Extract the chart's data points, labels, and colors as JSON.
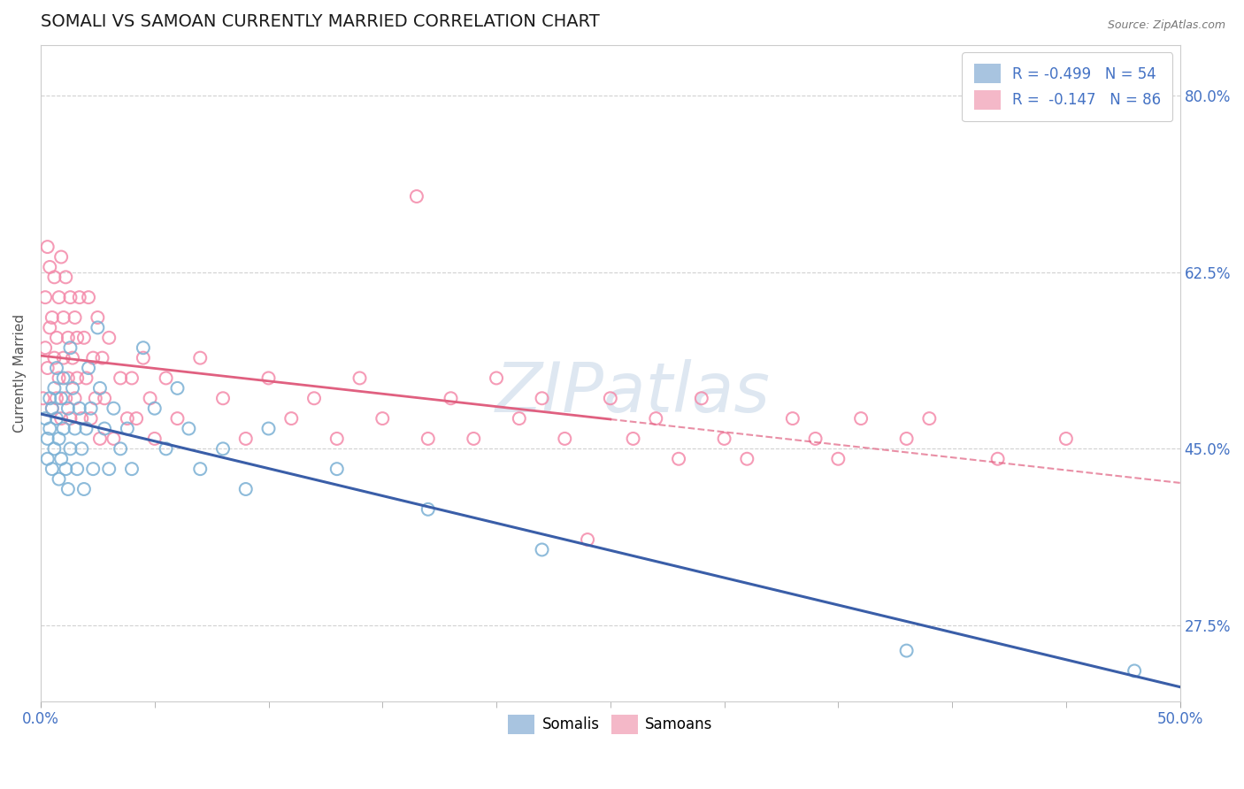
{
  "title": "SOMALI VS SAMOAN CURRENTLY MARRIED CORRELATION CHART",
  "source": "Source: ZipAtlas.com",
  "xlabel": "",
  "ylabel": "Currently Married",
  "xlim": [
    0.0,
    0.5
  ],
  "ylim": [
    0.2,
    0.85
  ],
  "yticks": [
    0.275,
    0.45,
    0.625,
    0.8
  ],
  "ytick_labels": [
    "27.5%",
    "45.0%",
    "62.5%",
    "80.0%"
  ],
  "xtick_labels": [
    "0.0%",
    "50.0%"
  ],
  "somali_color": "#7ab0d4",
  "samoan_color": "#f48aaa",
  "somali_line_color": "#3a5ea8",
  "samoan_line_color": "#e06080",
  "watermark_color": "#c8d8e8",
  "background_color": "#ffffff",
  "grid_color": "#cccccc",
  "title_color": "#1a1a2e",
  "somali_scatter": [
    [
      0.002,
      0.48
    ],
    [
      0.003,
      0.46
    ],
    [
      0.003,
      0.44
    ],
    [
      0.004,
      0.5
    ],
    [
      0.004,
      0.47
    ],
    [
      0.005,
      0.49
    ],
    [
      0.005,
      0.43
    ],
    [
      0.006,
      0.51
    ],
    [
      0.006,
      0.45
    ],
    [
      0.007,
      0.53
    ],
    [
      0.007,
      0.48
    ],
    [
      0.008,
      0.46
    ],
    [
      0.008,
      0.42
    ],
    [
      0.009,
      0.5
    ],
    [
      0.009,
      0.44
    ],
    [
      0.01,
      0.52
    ],
    [
      0.01,
      0.47
    ],
    [
      0.011,
      0.43
    ],
    [
      0.012,
      0.49
    ],
    [
      0.012,
      0.41
    ],
    [
      0.013,
      0.55
    ],
    [
      0.013,
      0.45
    ],
    [
      0.014,
      0.51
    ],
    [
      0.015,
      0.47
    ],
    [
      0.016,
      0.43
    ],
    [
      0.017,
      0.49
    ],
    [
      0.018,
      0.45
    ],
    [
      0.019,
      0.41
    ],
    [
      0.02,
      0.47
    ],
    [
      0.021,
      0.53
    ],
    [
      0.022,
      0.49
    ],
    [
      0.023,
      0.43
    ],
    [
      0.025,
      0.57
    ],
    [
      0.026,
      0.51
    ],
    [
      0.028,
      0.47
    ],
    [
      0.03,
      0.43
    ],
    [
      0.032,
      0.49
    ],
    [
      0.035,
      0.45
    ],
    [
      0.038,
      0.47
    ],
    [
      0.04,
      0.43
    ],
    [
      0.045,
      0.55
    ],
    [
      0.05,
      0.49
    ],
    [
      0.055,
      0.45
    ],
    [
      0.06,
      0.51
    ],
    [
      0.065,
      0.47
    ],
    [
      0.07,
      0.43
    ],
    [
      0.08,
      0.45
    ],
    [
      0.09,
      0.41
    ],
    [
      0.1,
      0.47
    ],
    [
      0.13,
      0.43
    ],
    [
      0.17,
      0.39
    ],
    [
      0.22,
      0.35
    ],
    [
      0.38,
      0.25
    ],
    [
      0.48,
      0.23
    ]
  ],
  "samoan_scatter": [
    [
      0.001,
      0.5
    ],
    [
      0.002,
      0.6
    ],
    [
      0.002,
      0.55
    ],
    [
      0.003,
      0.65
    ],
    [
      0.003,
      0.53
    ],
    [
      0.004,
      0.57
    ],
    [
      0.004,
      0.63
    ],
    [
      0.005,
      0.49
    ],
    [
      0.005,
      0.58
    ],
    [
      0.006,
      0.54
    ],
    [
      0.006,
      0.62
    ],
    [
      0.007,
      0.5
    ],
    [
      0.007,
      0.56
    ],
    [
      0.008,
      0.6
    ],
    [
      0.008,
      0.52
    ],
    [
      0.009,
      0.64
    ],
    [
      0.009,
      0.48
    ],
    [
      0.01,
      0.58
    ],
    [
      0.01,
      0.54
    ],
    [
      0.011,
      0.62
    ],
    [
      0.011,
      0.5
    ],
    [
      0.012,
      0.56
    ],
    [
      0.012,
      0.52
    ],
    [
      0.013,
      0.6
    ],
    [
      0.013,
      0.48
    ],
    [
      0.014,
      0.54
    ],
    [
      0.015,
      0.58
    ],
    [
      0.015,
      0.5
    ],
    [
      0.016,
      0.56
    ],
    [
      0.016,
      0.52
    ],
    [
      0.017,
      0.6
    ],
    [
      0.018,
      0.48
    ],
    [
      0.019,
      0.56
    ],
    [
      0.02,
      0.52
    ],
    [
      0.021,
      0.6
    ],
    [
      0.022,
      0.48
    ],
    [
      0.023,
      0.54
    ],
    [
      0.024,
      0.5
    ],
    [
      0.025,
      0.58
    ],
    [
      0.026,
      0.46
    ],
    [
      0.027,
      0.54
    ],
    [
      0.028,
      0.5
    ],
    [
      0.03,
      0.56
    ],
    [
      0.032,
      0.46
    ],
    [
      0.035,
      0.52
    ],
    [
      0.038,
      0.48
    ],
    [
      0.04,
      0.52
    ],
    [
      0.042,
      0.48
    ],
    [
      0.045,
      0.54
    ],
    [
      0.048,
      0.5
    ],
    [
      0.05,
      0.46
    ],
    [
      0.055,
      0.52
    ],
    [
      0.06,
      0.48
    ],
    [
      0.07,
      0.54
    ],
    [
      0.08,
      0.5
    ],
    [
      0.09,
      0.46
    ],
    [
      0.1,
      0.52
    ],
    [
      0.11,
      0.48
    ],
    [
      0.12,
      0.5
    ],
    [
      0.13,
      0.46
    ],
    [
      0.14,
      0.52
    ],
    [
      0.15,
      0.48
    ],
    [
      0.165,
      0.7
    ],
    [
      0.17,
      0.46
    ],
    [
      0.18,
      0.5
    ],
    [
      0.19,
      0.46
    ],
    [
      0.2,
      0.52
    ],
    [
      0.21,
      0.48
    ],
    [
      0.22,
      0.5
    ],
    [
      0.23,
      0.46
    ],
    [
      0.24,
      0.36
    ],
    [
      0.25,
      0.5
    ],
    [
      0.26,
      0.46
    ],
    [
      0.27,
      0.48
    ],
    [
      0.28,
      0.44
    ],
    [
      0.29,
      0.5
    ],
    [
      0.3,
      0.46
    ],
    [
      0.31,
      0.44
    ],
    [
      0.33,
      0.48
    ],
    [
      0.34,
      0.46
    ],
    [
      0.35,
      0.44
    ],
    [
      0.36,
      0.48
    ],
    [
      0.38,
      0.46
    ],
    [
      0.39,
      0.48
    ],
    [
      0.42,
      0.44
    ],
    [
      0.45,
      0.46
    ]
  ]
}
